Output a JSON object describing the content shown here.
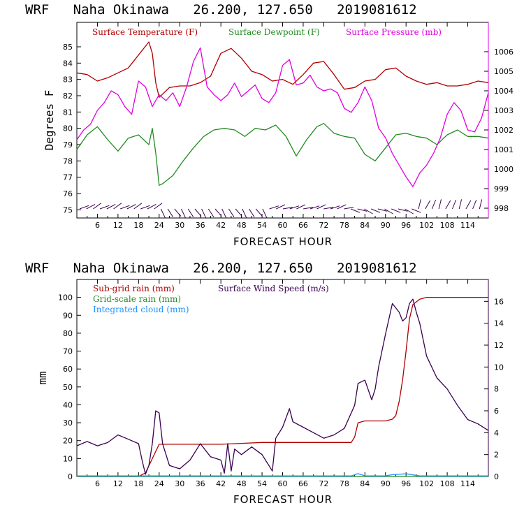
{
  "chart_data": [
    {
      "type": "line",
      "title": "WRF   Naha Okinawa   26.200, 127.650   2019081612",
      "xlabel": "FORECAST HOUR",
      "ylabel": "Degrees F",
      "xlim": [
        0,
        120
      ],
      "ylim": [
        74.5,
        86.5
      ],
      "y2lim": [
        997.5,
        1007.5
      ],
      "x_ticks": [
        6,
        12,
        18,
        24,
        30,
        36,
        42,
        48,
        54,
        60,
        66,
        72,
        78,
        84,
        90,
        96,
        102,
        108,
        114
      ],
      "y_ticks": [
        75,
        76,
        77,
        78,
        79,
        80,
        81,
        82,
        83,
        84,
        85
      ],
      "y2_ticks": [
        998,
        999,
        1000,
        1001,
        1002,
        1003,
        1004,
        1005,
        1006
      ],
      "series": [
        {
          "name": "Surface Temperature (F)",
          "color": "#b00000",
          "axis": "left",
          "x": [
            0,
            3,
            6,
            9,
            12,
            15,
            18,
            21,
            22,
            23,
            24,
            27,
            30,
            33,
            36,
            39,
            42,
            45,
            48,
            51,
            54,
            57,
            60,
            63,
            66,
            69,
            72,
            75,
            78,
            81,
            84,
            87,
            90,
            93,
            96,
            99,
            102,
            105,
            108,
            111,
            114,
            117,
            120
          ],
          "y": [
            83.4,
            83.3,
            82.9,
            83.1,
            83.4,
            83.7,
            84.5,
            85.3,
            84.6,
            82.8,
            81.9,
            82.5,
            82.6,
            82.6,
            82.8,
            83.2,
            84.6,
            84.9,
            84.3,
            83.5,
            83.3,
            82.9,
            83.0,
            82.7,
            83.3,
            84.0,
            84.1,
            83.3,
            82.4,
            82.5,
            82.9,
            83.0,
            83.6,
            83.7,
            83.2,
            82.9,
            82.7,
            82.8,
            82.6,
            82.6,
            82.7,
            82.9,
            82.8
          ]
        },
        {
          "name": "Surface Dewpoint (F)",
          "color": "#228b22",
          "axis": "left",
          "x": [
            0,
            3,
            6,
            9,
            12,
            15,
            18,
            21,
            22,
            23,
            24,
            25,
            28,
            31,
            34,
            37,
            40,
            43,
            46,
            49,
            52,
            55,
            58,
            61,
            64,
            67,
            70,
            72,
            75,
            78,
            81,
            84,
            87,
            90,
            93,
            96,
            99,
            102,
            105,
            108,
            111,
            114,
            117,
            120
          ],
          "y": [
            78.7,
            79.6,
            80.1,
            79.3,
            78.6,
            79.4,
            79.6,
            79.0,
            80.0,
            78.5,
            76.5,
            76.6,
            77.1,
            78.0,
            78.8,
            79.5,
            79.9,
            80.0,
            79.9,
            79.5,
            80.0,
            79.9,
            80.2,
            79.5,
            78.3,
            79.3,
            80.1,
            80.3,
            79.7,
            79.5,
            79.4,
            78.4,
            78.0,
            78.8,
            79.6,
            79.7,
            79.5,
            79.4,
            79.0,
            79.6,
            79.9,
            79.5,
            79.5,
            79.4
          ]
        },
        {
          "name": "Surface Pressure (mb)",
          "color": "#e000e0",
          "axis": "right",
          "x": [
            0,
            2,
            4,
            6,
            8,
            10,
            12,
            14,
            16,
            18,
            20,
            22,
            24,
            26,
            28,
            30,
            32,
            34,
            36,
            38,
            40,
            42,
            44,
            46,
            48,
            50,
            52,
            54,
            56,
            58,
            60,
            62,
            64,
            66,
            68,
            70,
            72,
            74,
            76,
            78,
            80,
            82,
            84,
            86,
            88,
            90,
            92,
            94,
            96,
            98,
            100,
            102,
            104,
            106,
            108,
            110,
            112,
            114,
            116,
            118,
            120
          ],
          "y": [
            1001.5,
            1002.0,
            1002.3,
            1003.0,
            1003.4,
            1004.0,
            1003.8,
            1003.2,
            1002.8,
            1004.5,
            1004.2,
            1003.2,
            1003.8,
            1003.5,
            1003.9,
            1003.2,
            1004.2,
            1005.5,
            1006.2,
            1004.2,
            1003.8,
            1003.5,
            1003.8,
            1004.4,
            1003.7,
            1004.0,
            1004.3,
            1003.6,
            1003.4,
            1003.9,
            1005.3,
            1005.6,
            1004.3,
            1004.4,
            1004.8,
            1004.2,
            1004.0,
            1004.1,
            1003.9,
            1003.1,
            1002.9,
            1003.4,
            1004.2,
            1003.5,
            1002.1,
            1001.6,
            1000.8,
            1000.2,
            999.6,
            999.1,
            999.8,
            1000.2,
            1000.8,
            1001.6,
            1002.8,
            1003.4,
            1003.0,
            1002.0,
            1001.9,
            1002.6,
            1003.9
          ]
        }
      ]
    },
    {
      "type": "line",
      "title": "WRF   Naha Okinawa   26.200, 127.650   2019081612",
      "xlabel": "FORECAST HOUR",
      "ylabel": "mm",
      "xlim": [
        0,
        120
      ],
      "ylim": [
        0,
        110
      ],
      "y2lim": [
        0,
        18
      ],
      "x_ticks": [
        6,
        12,
        18,
        24,
        30,
        36,
        42,
        48,
        54,
        60,
        66,
        72,
        78,
        84,
        90,
        96,
        102,
        108,
        114
      ],
      "y_ticks": [
        0,
        10,
        20,
        30,
        40,
        50,
        60,
        70,
        80,
        90,
        100
      ],
      "y2_ticks": [
        0,
        2,
        4,
        6,
        8,
        10,
        12,
        14,
        16
      ],
      "series": [
        {
          "name": "Sub-grid rain (mm)",
          "color": "#b00000",
          "axis": "left",
          "x": [
            0,
            18,
            20,
            22,
            24,
            30,
            36,
            42,
            48,
            54,
            60,
            66,
            72,
            78,
            80,
            81,
            82,
            84,
            86,
            88,
            90,
            92,
            93,
            94,
            95,
            96,
            97,
            98,
            100,
            102,
            108,
            114,
            120
          ],
          "y": [
            0,
            0,
            2,
            10,
            18,
            18,
            18,
            18,
            18.5,
            19,
            19,
            19,
            19,
            19,
            19,
            22,
            30,
            31,
            31,
            31,
            31,
            32,
            34,
            42,
            54,
            70,
            88,
            96,
            99,
            100,
            100,
            100,
            100
          ]
        },
        {
          "name": "Grid-scale rain (mm)",
          "color": "#228b22",
          "axis": "left",
          "x": [
            0,
            120
          ],
          "y": [
            0,
            0
          ]
        },
        {
          "name": "Integrated cloud (mm)",
          "color": "#1e90ff",
          "axis": "left",
          "x": [
            0,
            40,
            80,
            82,
            84,
            90,
            92,
            96,
            100,
            120
          ],
          "y": [
            0.3,
            0.3,
            0.3,
            1.6,
            0.4,
            0.3,
            1.0,
            1.5,
            0.3,
            0.3
          ]
        },
        {
          "name": "Surface Wind Speed (m/s)",
          "color": "#3a0050",
          "axis": "right",
          "x": [
            0,
            3,
            6,
            9,
            12,
            15,
            18,
            19,
            20,
            21,
            22,
            23,
            24,
            25,
            27,
            30,
            33,
            36,
            39,
            42,
            43,
            44,
            45,
            46,
            48,
            51,
            54,
            57,
            58,
            60,
            62,
            63,
            66,
            69,
            72,
            75,
            78,
            81,
            82,
            84,
            86,
            87,
            88,
            90,
            92,
            94,
            95,
            96,
            97,
            98,
            99,
            100,
            102,
            105,
            108,
            111,
            114,
            117,
            120
          ],
          "y": [
            2.8,
            3.2,
            2.8,
            3.1,
            3.8,
            3.4,
            3.0,
            1.5,
            0.2,
            1.0,
            3.0,
            6.0,
            5.8,
            3.0,
            1.0,
            0.7,
            1.5,
            3.0,
            1.8,
            1.5,
            0.3,
            3.0,
            0.5,
            2.5,
            2.0,
            2.7,
            2.0,
            0.5,
            3.5,
            4.5,
            6.2,
            5.0,
            4.5,
            4.0,
            3.5,
            3.8,
            4.4,
            6.5,
            8.5,
            8.8,
            7.0,
            8.0,
            10.0,
            13.0,
            15.8,
            15.0,
            14.2,
            14.5,
            15.8,
            16.2,
            15.0,
            14.0,
            11.0,
            9.0,
            8.0,
            6.5,
            5.2,
            4.8,
            4.2
          ]
        }
      ]
    }
  ]
}
